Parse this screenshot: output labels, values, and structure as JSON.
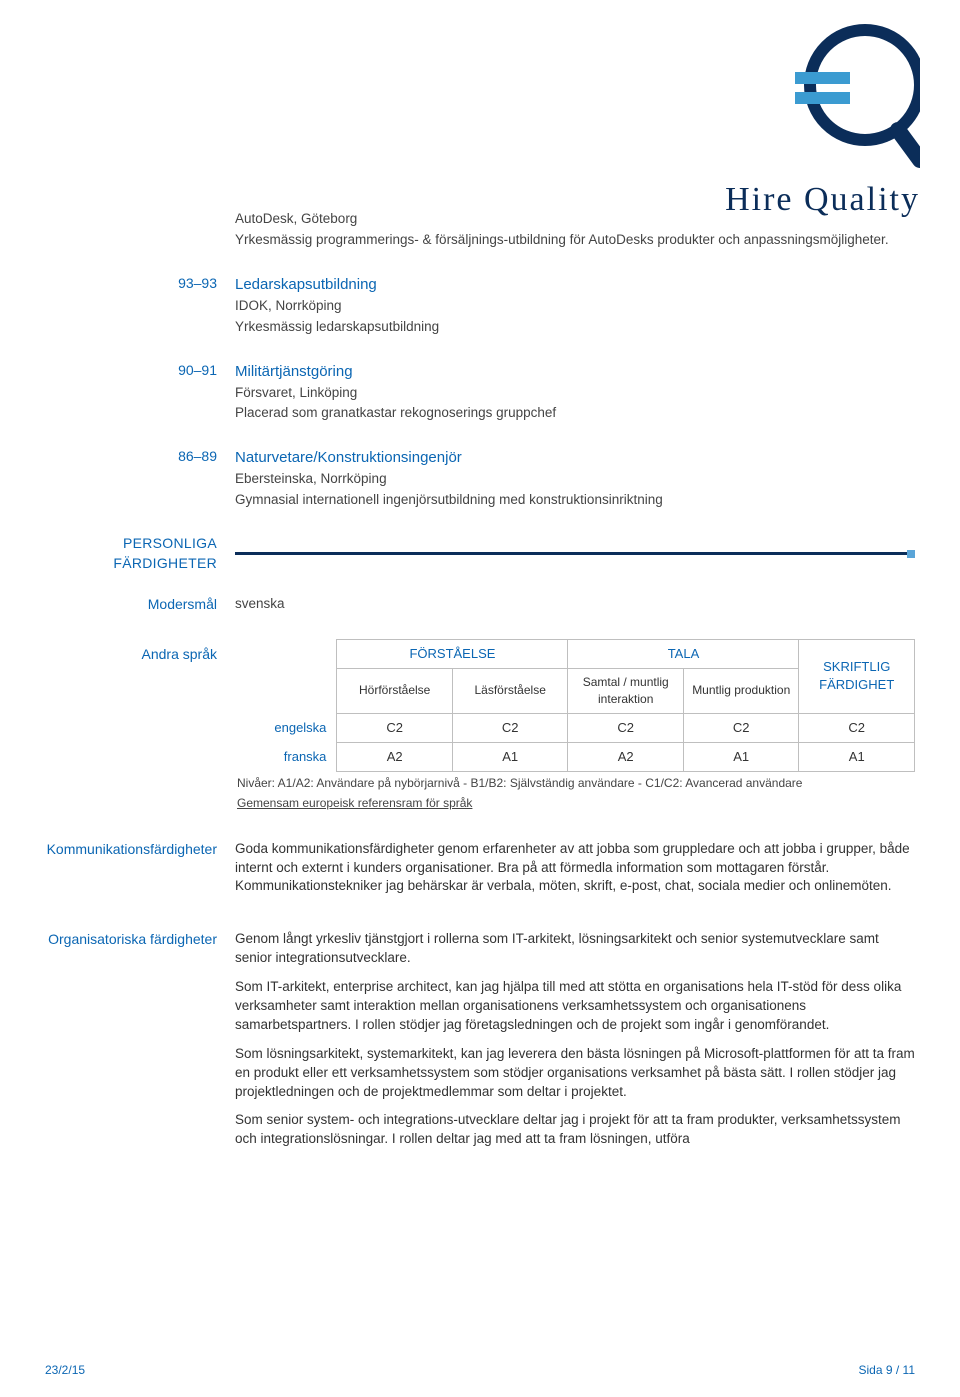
{
  "logo": {
    "brand": "Hire Quality"
  },
  "intro": {
    "company": "AutoDesk, Göteborg",
    "desc": "Yrkesmässig programmerings- & försäljnings-utbildning för AutoDesks produkter och anpassningsmöjligheter."
  },
  "edu": [
    {
      "years": "93–93",
      "title": "Ledarskapsutbildning",
      "org": "IDOK, Norrköping",
      "desc": "Yrkesmässig ledarskapsutbildning"
    },
    {
      "years": "90–91",
      "title": "Militärtjänstgöring",
      "org": "Försvaret, Linköping",
      "desc": "Placerad som granatkastar rekognoserings gruppchef"
    },
    {
      "years": "86–89",
      "title": "Naturvetare/Konstruktionsingenjör",
      "org": "Ebersteinska, Norrköping",
      "desc": "Gymnasial internationell ingenjörsutbildning med konstruktionsinriktning"
    }
  ],
  "section_personal": "PERSONLIGA FÄRDIGHETER",
  "mother_tongue": {
    "label": "Modersmål",
    "value": "svenska"
  },
  "other_lang": {
    "label": "Andra språk",
    "headers": {
      "understanding": "FÖRSTÅELSE",
      "speaking": "TALA",
      "writing": "SKRIFTLIG FÄRDIGHET",
      "listening": "Hörförståelse",
      "reading": "Läsförståelse",
      "interaction": "Samtal / muntlig interaktion",
      "production": "Muntlig produktion"
    },
    "rows": [
      {
        "lang": "engelska",
        "c": [
          "C2",
          "C2",
          "C2",
          "C2",
          "C2"
        ]
      },
      {
        "lang": "franska",
        "c": [
          "A2",
          "A1",
          "A2",
          "A1",
          "A1"
        ]
      }
    ],
    "note1": "Nivåer: A1/A2: Användare på nybörjarnivå - B1/B2: Självständig användare - C1/C2: Avancerad användare",
    "note2": "Gemensam europeisk referensram för språk"
  },
  "comm": {
    "label": "Kommunikationsfärdigheter",
    "text": "Goda kommunikationsfärdigheter genom erfarenheter av att jobba som gruppledare och att jobba i grupper, både internt och externt i kunders organisationer. Bra på att förmedla information som mottagaren förstår. Kommunikationstekniker jag behärskar är verbala, möten, skrift, e-post, chat, sociala medier och onlinemöten."
  },
  "org": {
    "label": "Organisatoriska färdigheter",
    "p1": "Genom långt yrkesliv tjänstgjort i rollerna som IT-arkitekt, lösningsarkitekt och senior systemutvecklare samt senior integrationsutvecklare.",
    "p2": "Som IT-arkitekt, enterprise architect, kan jag hjälpa till med att stötta en organisations hela IT-stöd för dess olika verksamheter samt interaktion mellan organisationens verksamhetssystem och organisationens samarbetspartners. I rollen stödjer jag företagsledningen och de projekt som ingår i genomförandet.",
    "p3": "Som lösningsarkitekt, systemarkitekt, kan jag leverera den bästa lösningen på Microsoft-plattformen för att ta fram en produkt eller ett verksamhetssystem som stödjer organisations verksamhet på bästa sätt. I rollen stödjer jag projektledningen och de projektmedlemmar som deltar i projektet.",
    "p4": "Som senior system- och integrations-utvecklare deltar jag i projekt för att ta fram produkter, verksamhetssystem och integrationslösningar. I rollen deltar jag med att ta fram lösningen, utföra"
  },
  "footer": {
    "date": "23/2/15",
    "page": "Sida 9 / 11"
  }
}
